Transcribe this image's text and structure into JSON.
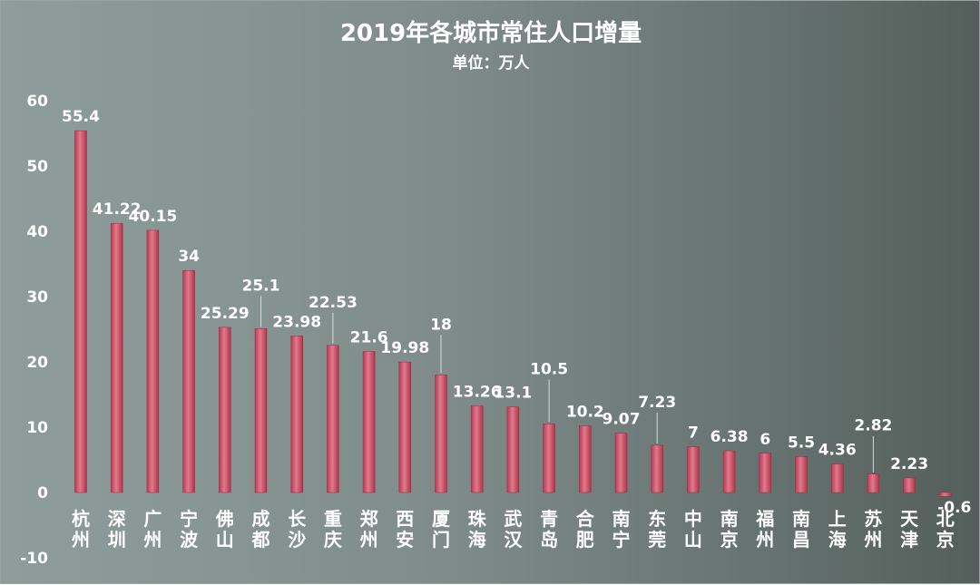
{
  "chart_data": {
    "type": "bar",
    "title": "2019年各城市常住人口增量",
    "subtitle": "单位：万人",
    "xlabel": "",
    "ylabel": "",
    "ylim": [
      -10,
      60
    ],
    "yticks": [
      "60",
      "50",
      "40",
      "30",
      "20",
      "10",
      "0",
      "-10"
    ],
    "grid": false,
    "categories": [
      "杭州",
      "深圳",
      "广州",
      "宁波",
      "佛山",
      "成都",
      "长沙",
      "重庆",
      "郑州",
      "西安",
      "厦门",
      "珠海",
      "武汉",
      "青岛",
      "合肥",
      "南宁",
      "东莞",
      "中山",
      "南京",
      "福州",
      "南昌",
      "上海",
      "苏州",
      "天津",
      "北京"
    ],
    "values": [
      55.4,
      41.22,
      40.15,
      34,
      25.29,
      25.1,
      23.98,
      22.53,
      21.6,
      19.98,
      18,
      13.26,
      13.1,
      10.5,
      10.2,
      9.07,
      7.23,
      7,
      6.38,
      6,
      5.5,
      4.36,
      2.82,
      2.23,
      -0.6
    ],
    "data_labels": [
      "55.4",
      "41.22",
      "40.15",
      "34",
      "25.29",
      "25.1",
      "23.98",
      "22.53",
      "21.6",
      "19.98",
      "18",
      "13.26",
      "13.1",
      "10.5",
      "10.2",
      "9.07",
      "7.23",
      "7",
      "6.38",
      "6",
      "5.5",
      "4.36",
      "2.82",
      "2.23",
      "-0.6"
    ],
    "bar_color": "#d2576e"
  }
}
